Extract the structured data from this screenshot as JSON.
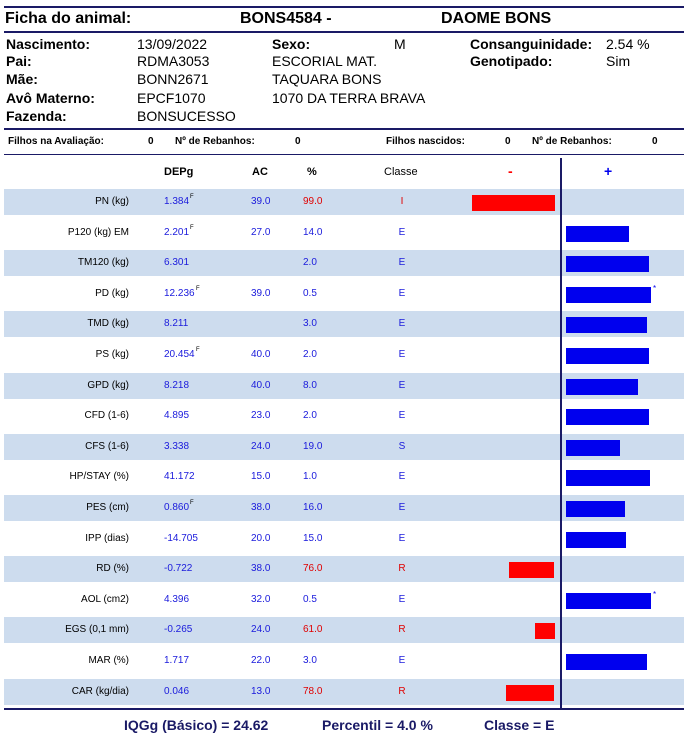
{
  "header": {
    "title_label": "Ficha do animal:",
    "animal_id": "BONS4584 -",
    "animal_name": "DAOME BONS"
  },
  "info": {
    "nascimento_label": "Nascimento:",
    "nascimento": "13/09/2022",
    "sexo_label": "Sexo:",
    "sexo": "M",
    "consang_label": "Consanguinidade:",
    "consang": "2.54 %",
    "pai_label": "Pai:",
    "pai": "RDMA3053",
    "pai_nome": "ESCORIAL MAT.",
    "genotipado_label": "Genotipado:",
    "genotipado": "Sim",
    "mae_label": "Mãe:",
    "mae": "BONN2671",
    "mae_nome": "TAQUARA BONS",
    "avo_label": "Avô Materno:",
    "avo": "EPCF1070",
    "avo_nome": "1070 DA TERRA BRAVA",
    "fazenda_label": "Fazenda:",
    "fazenda": "BONSUCESSO"
  },
  "stats": {
    "filhos_aval_label": "Filhos na Avaliação:",
    "filhos_aval": "0",
    "rebanhos1_label": "Nº de Rebanhos:",
    "rebanhos1": "0",
    "filhos_nasc_label": "Filhos nascidos:",
    "filhos_nasc": "0",
    "rebanhos2_label": "Nº de Rebanhos:",
    "rebanhos2": "0"
  },
  "table": {
    "headers": {
      "dep": "DEPg",
      "ac": "AC",
      "pct": "%",
      "classe": "Classe",
      "minus": "-",
      "plus": "+"
    },
    "rows": [
      {
        "name": "PN (kg)",
        "dep": "1.384",
        "sup": "F",
        "ac": "39.0",
        "pct": "99.0",
        "cls": "I",
        "red": true,
        "bar": -0.55,
        "star": false
      },
      {
        "name": "P120 (kg) EM",
        "dep": "2.201",
        "sup": "F",
        "ac": "27.0",
        "pct": "14.0",
        "cls": "E",
        "red": false,
        "bar": 0.42,
        "star": false
      },
      {
        "name": "TM120 (kg)",
        "dep": "6.301",
        "sup": "",
        "ac": "",
        "pct": "2.0",
        "cls": "E",
        "red": false,
        "bar": 0.55,
        "star": false
      },
      {
        "name": "PD (kg)",
        "dep": "12.236",
        "sup": "F",
        "ac": "39.0",
        "pct": "0.5",
        "cls": "E",
        "red": false,
        "bar": 0.57,
        "star": true
      },
      {
        "name": "TMD (kg)",
        "dep": "8.211",
        "sup": "",
        "ac": "",
        "pct": "3.0",
        "cls": "E",
        "red": false,
        "bar": 0.54,
        "star": false
      },
      {
        "name": "PS (kg)",
        "dep": "20.454",
        "sup": "F",
        "ac": "40.0",
        "pct": "2.0",
        "cls": "E",
        "red": false,
        "bar": 0.55,
        "star": false
      },
      {
        "name": "GPD (kg)",
        "dep": "8.218",
        "sup": "",
        "ac": "40.0",
        "pct": "8.0",
        "cls": "E",
        "red": false,
        "bar": 0.48,
        "star": false
      },
      {
        "name": "CFD (1-6)",
        "dep": "4.895",
        "sup": "",
        "ac": "23.0",
        "pct": "2.0",
        "cls": "E",
        "red": false,
        "bar": 0.55,
        "star": false
      },
      {
        "name": "CFS (1-6)",
        "dep": "3.338",
        "sup": "",
        "ac": "24.0",
        "pct": "19.0",
        "cls": "S",
        "red": false,
        "bar": 0.36,
        "star": false
      },
      {
        "name": "HP/STAY (%)",
        "dep": "41.172",
        "sup": "",
        "ac": "15.0",
        "pct": "1.0",
        "cls": "E",
        "red": false,
        "bar": 0.56,
        "star": false
      },
      {
        "name": "PES (cm)",
        "dep": "0.860",
        "sup": "F",
        "ac": "38.0",
        "pct": "16.0",
        "cls": "E",
        "red": false,
        "bar": 0.39,
        "star": false
      },
      {
        "name": "IPP (dias)",
        "dep": "-14.705",
        "sup": "",
        "ac": "20.0",
        "pct": "15.0",
        "cls": "E",
        "red": false,
        "bar": 0.4,
        "star": false
      },
      {
        "name": "RD (%)",
        "dep": "-0.722",
        "sup": "",
        "ac": "38.0",
        "pct": "76.0",
        "cls": "R",
        "red": true,
        "bar": -0.3,
        "star": false
      },
      {
        "name": "AOL (cm2)",
        "dep": "4.396",
        "sup": "",
        "ac": "32.0",
        "pct": "0.5",
        "cls": "E",
        "red": false,
        "bar": 0.57,
        "star": true
      },
      {
        "name": "EGS (0,1 mm)",
        "dep": "-0.265",
        "sup": "",
        "ac": "24.0",
        "pct": "61.0",
        "cls": "R",
        "red": true,
        "bar": -0.13,
        "star": false
      },
      {
        "name": "MAR (%)",
        "dep": "1.717",
        "sup": "",
        "ac": "22.0",
        "pct": "3.0",
        "cls": "E",
        "red": false,
        "bar": 0.54,
        "star": false
      },
      {
        "name": "CAR (kg/dia)",
        "dep": "0.046",
        "sup": "",
        "ac": "13.0",
        "pct": "78.0",
        "cls": "R",
        "red": true,
        "bar": -0.32,
        "star": false
      }
    ]
  },
  "footer": {
    "iqgg": "IQGg (Básico) = 24.62",
    "percentil": "Percentil = 4.0 %",
    "classe": "Classe = E"
  },
  "colors": {
    "positive_bar": "#0000ee",
    "negative_bar": "#ff0000",
    "shade": "#cddcee",
    "value_blue": "#1a1adc",
    "value_red": "#e00000"
  }
}
